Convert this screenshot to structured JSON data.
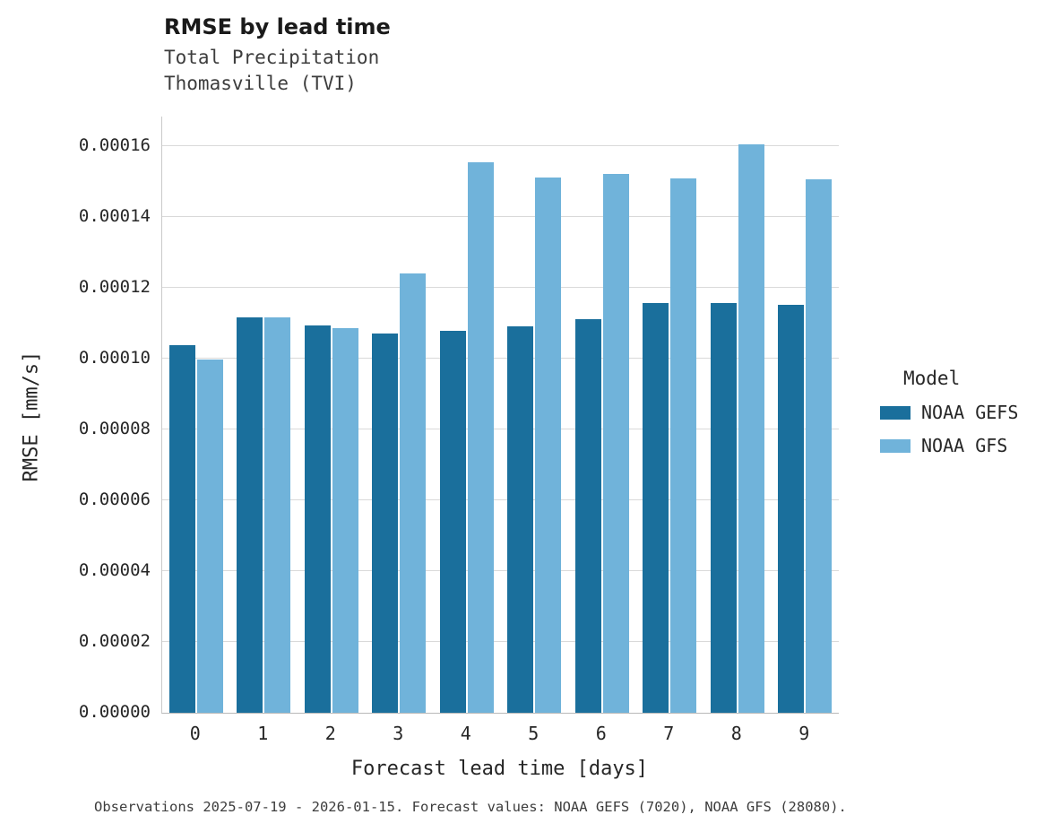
{
  "header": {
    "title": "RMSE by lead time",
    "subtitle1": "Total Precipitation",
    "subtitle2": "Thomasville (TVI)"
  },
  "chart_data": {
    "type": "bar",
    "title": "RMSE by lead time",
    "subtitle": [
      "Total Precipitation",
      "Thomasville (TVI)"
    ],
    "xlabel": "Forecast lead time [days]",
    "ylabel": "RMSE [mm/s]",
    "categories": [
      "0",
      "1",
      "2",
      "3",
      "4",
      "5",
      "6",
      "7",
      "8",
      "9"
    ],
    "series": [
      {
        "name": "NOAA GEFS",
        "color": "#1a6f9c",
        "values": [
          0.0001038,
          0.0001116,
          0.0001094,
          0.0001071,
          0.0001078,
          0.0001091,
          0.0001111,
          0.0001157,
          0.0001157,
          0.0001152
        ]
      },
      {
        "name": "NOAA GFS",
        "color": "#70b3da",
        "values": [
          9.97e-05,
          0.0001116,
          0.0001086,
          0.000124,
          0.0001554,
          0.0001511,
          0.0001521,
          0.0001509,
          0.0001605,
          0.0001506
        ]
      }
    ],
    "ylim": [
      0,
      0.00016837
    ],
    "yticks": [
      0,
      2e-05,
      4e-05,
      6e-05,
      8e-05,
      0.0001,
      0.00012,
      0.00014,
      0.00016
    ],
    "ytick_format_decimals": 5,
    "grid": true,
    "legend_title": "Model",
    "legend_position": "right"
  },
  "caption": "Observations 2025-07-19 - 2026-01-15. Forecast values: NOAA GEFS (7020), NOAA GFS (28080)."
}
